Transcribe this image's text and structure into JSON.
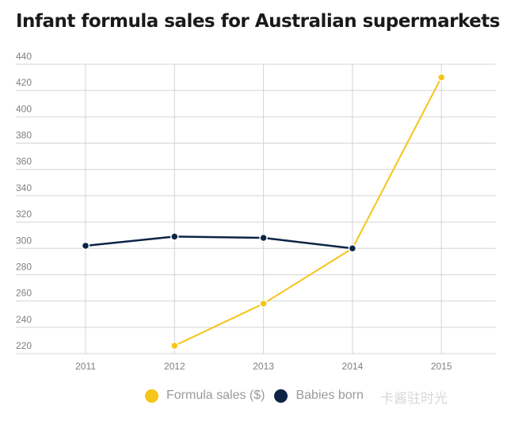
{
  "chart_data": {
    "type": "line",
    "title": "Infant formula sales for Australian supermarkets",
    "x": [
      2011,
      2012,
      2013,
      2014,
      2015
    ],
    "x_tick_labels": [
      "2011",
      "2012",
      "2013",
      "2014",
      "2015"
    ],
    "y_tick_labels": [
      "440",
      "420",
      "400",
      "380",
      "360",
      "340",
      "320",
      "300",
      "280",
      "260",
      "240",
      "220"
    ],
    "ylim": [
      220,
      440
    ],
    "grid": true,
    "legend_placement": "bottom",
    "series": [
      {
        "name": "Formula sales ($)",
        "color": "#f5c518",
        "values": [
          null,
          226,
          258,
          300,
          430
        ]
      },
      {
        "name": "Babies born",
        "color": "#0d2447",
        "values": [
          302,
          309,
          308,
          300,
          null
        ]
      }
    ]
  },
  "watermark": "卡酱驻时光"
}
